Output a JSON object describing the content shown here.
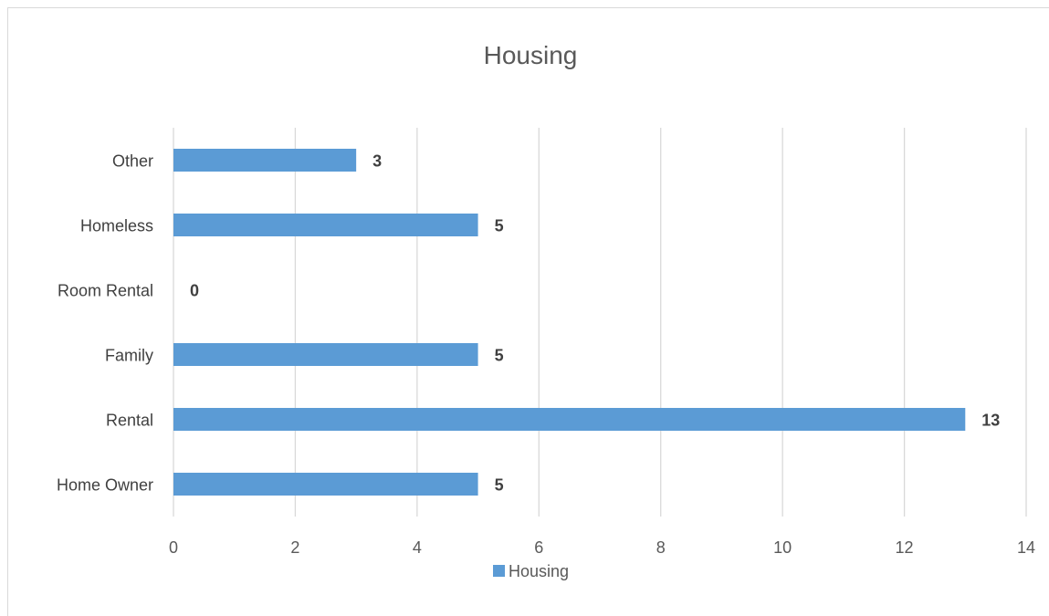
{
  "heading": "",
  "chart_data": {
    "type": "bar",
    "orientation": "horizontal",
    "title": "Housing",
    "categories": [
      "Home Owner",
      "Rental",
      "Family",
      "Room Rental",
      "Homeless",
      "Other"
    ],
    "series": [
      {
        "name": "Housing",
        "values": [
          5,
          13,
          5,
          0,
          5,
          3
        ],
        "color": "#5b9bd5"
      }
    ],
    "xlim": [
      0,
      14
    ],
    "xticks": [
      0,
      2,
      4,
      6,
      8,
      10,
      12,
      14
    ],
    "xlabel": "",
    "ylabel": "",
    "grid": "vertical",
    "data_labels": true,
    "legend": {
      "position": "bottom",
      "entries": [
        "Housing"
      ]
    }
  }
}
